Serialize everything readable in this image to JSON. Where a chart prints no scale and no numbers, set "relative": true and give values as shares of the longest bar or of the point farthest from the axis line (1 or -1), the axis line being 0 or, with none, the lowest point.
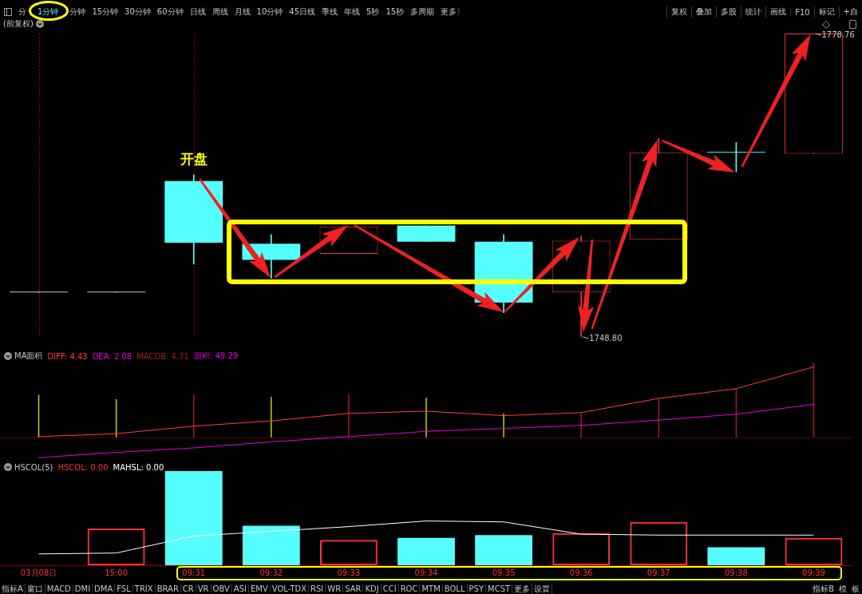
{
  "chart_data": [
    {
      "type": "candlestick",
      "title": "(前复权)",
      "categories": [
        "03月08日",
        "15:00",
        "09:31",
        "09:32",
        "09:33",
        "09:34",
        "09:35",
        "09:36",
        "09:37",
        "09:38",
        "09:39"
      ],
      "ohlc": [
        [
          1753.2,
          1753.2,
          1753.2,
          1753.2
        ],
        [
          1753.2,
          1753.2,
          1753.2,
          1753.2
        ],
        [
          1764.2,
          1764.8,
          1756.0,
          1758.1
        ],
        [
          1758.0,
          1758.9,
          1754.6,
          1756.4
        ],
        [
          1757.0,
          1759.7,
          1757.0,
          1759.7
        ],
        [
          1759.8,
          1759.8,
          1758.2,
          1758.2
        ],
        [
          1758.2,
          1758.9,
          1751.2,
          1752.2
        ],
        [
          1753.2,
          1758.8,
          1748.8,
          1758.3
        ],
        [
          1758.4,
          1768.4,
          1758.4,
          1767.0
        ],
        [
          1767.0,
          1768.0,
          1765.1,
          1767.0
        ],
        [
          1766.9,
          1778.76,
          1766.9,
          1778.76
        ]
      ],
      "colors": [
        "#c8c8c8",
        "#c8c8c8",
        "#55ffff",
        "#55ffff",
        "#ff3232",
        "#55ffff",
        "#55ffff",
        "#ff3232",
        "#ff3232",
        "#55ffff",
        "#ff3232"
      ],
      "tick_labels": false,
      "ref_lines": [
        {
          "axis": "x",
          "value": "03月08日",
          "line_style": "dotted",
          "color": "#a00000"
        },
        {
          "axis": "x",
          "value": "09:31",
          "line_style": "dotted",
          "color": "#a00000"
        }
      ],
      "annotations": [
        "分",
        "1分钟",
        "分钟",
        "15分钟",
        "30分钟",
        "60分钟",
        "日线",
        "周线",
        "月线",
        "10分钟",
        "45日线",
        "季线",
        "年线",
        "5秒",
        "15秒",
        "多周期",
        "更多〉",
        "复权",
        "叠加",
        "多股",
        "统计",
        "画线",
        "F10",
        "标记",
        "+自",
        {
          "text": "开盘",
          "x": "09:31",
          "y": 1766.4
        },
        {
          "text": "1778.76",
          "x": "09:39",
          "y": 1778.76
        },
        {
          "text": "1748.80",
          "x": "09:36",
          "y": 1748.8
        }
      ]
    },
    {
      "type": "line",
      "title": "MA面积",
      "relative": true,
      "categories": [
        "03月08日",
        "15:00",
        "09:31",
        "09:32",
        "09:33",
        "09:34",
        "09:35",
        "09:36",
        "09:37",
        "09:38",
        "09:39"
      ],
      "series": [
        {
          "name": "DIFF: 4.43",
          "color": "#ff3c3c",
          "values": [
            0.01,
            0.05,
            0.15,
            0.22,
            0.32,
            0.35,
            0.29,
            0.33,
            0.52,
            0.65,
            0.94
          ]
        },
        {
          "name": "DEA: 2.08",
          "color": "#e000e0",
          "values": [
            -0.27,
            -0.2,
            -0.14,
            -0.06,
            0.01,
            0.08,
            0.12,
            0.16,
            0.23,
            0.31,
            0.44
          ]
        },
        {
          "name": "MACDB: 4.71",
          "type": "bar",
          "colors": [
            "#d4d400",
            "#d4d400",
            "#a81c1c",
            "#d4d400",
            "#a81c1c",
            "#d4d400",
            "#d4d400",
            "#a81c1c",
            "#a81c1c",
            "#a81c1c",
            "#a81c1c"
          ],
          "values": [
            0.57,
            0.51,
            0.57,
            0.54,
            0.58,
            0.53,
            0.32,
            0.33,
            0.52,
            0.65,
            1
          ]
        }
      ],
      "ref_lines": [
        {
          "axis": "y",
          "value": 0,
          "color": "#5a0000"
        }
      ],
      "tick_labels": false,
      "legend": "top left",
      "annotations": [
        "面积: 49.29"
      ]
    },
    {
      "type": "bar",
      "title": "HSCOL(5)",
      "relative": true,
      "categories": [
        "03月08日",
        "15:00",
        "09:31",
        "09:32",
        "09:33",
        "09:34",
        "09:35",
        "09:36",
        "09:37",
        "09:38",
        "09:39"
      ],
      "series": [
        {
          "name": "HSCOL: 0.00",
          "colors": [
            null,
            "#ff3232",
            "#55ffff",
            "#55ffff",
            "#ff3232",
            "#55ffff",
            "#55ffff",
            "#ff3232",
            "#ff3232",
            "#55ffff",
            "#ff3232"
          ],
          "values": [
            null,
            0.39,
            1,
            0.42,
            0.27,
            0.29,
            0.32,
            0.34,
            0.46,
            0.19,
            0.29
          ]
        },
        {
          "name": "MAHSL: 0.00",
          "type": "line",
          "color": "#ffffff",
          "values": [
            0.12,
            0.13,
            0.31,
            0.36,
            0.41,
            0.47,
            0.46,
            0.33,
            0.32,
            0.32,
            0.32
          ]
        }
      ],
      "tick_labels": "x",
      "legend": "top left",
      "annotations": [
        "指标A",
        "窗口",
        "MACD",
        "DMI",
        "DMA",
        "FSL",
        "TRIX",
        "BRAR",
        "CR",
        "VR",
        "OBV",
        "ASI",
        "EMV",
        "VOL-TDX",
        "RSI",
        "WR",
        "SAR",
        "KDJ",
        "CCI",
        "ROC",
        "MTM",
        "BOLL",
        "PSY",
        "MCST",
        "更多",
        "设置",
        "指标B",
        "模",
        "板"
      ]
    }
  ]
}
